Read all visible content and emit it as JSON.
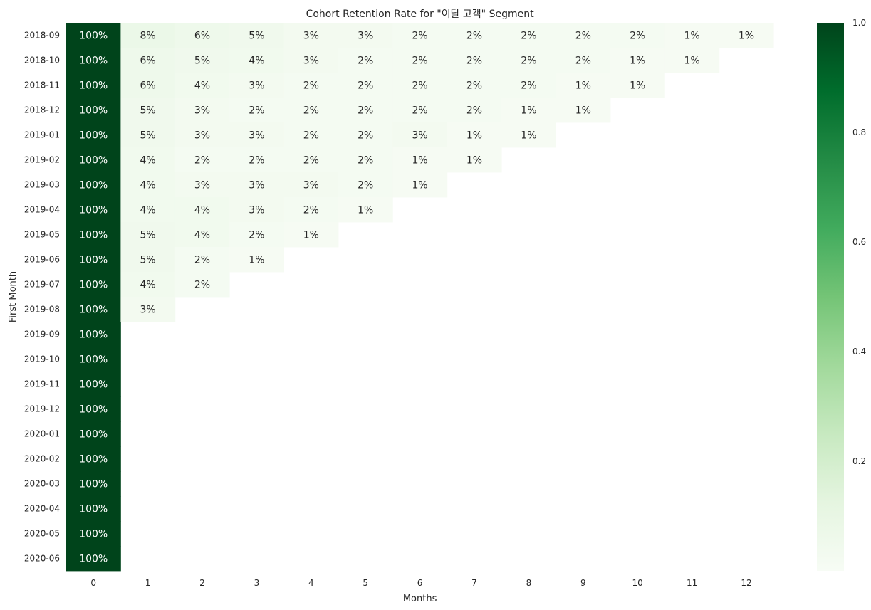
{
  "chart_data": {
    "type": "heatmap",
    "title": "Cohort Retention Rate for \"이탈 고객\" Segment",
    "xlabel": "Months",
    "ylabel": "First Month",
    "x_ticks": [
      "0",
      "1",
      "2",
      "3",
      "4",
      "5",
      "6",
      "7",
      "8",
      "9",
      "10",
      "11",
      "12"
    ],
    "y_ticks": [
      "2018-09",
      "2018-10",
      "2018-11",
      "2018-12",
      "2019-01",
      "2019-02",
      "2019-03",
      "2019-04",
      "2019-05",
      "2019-06",
      "2019-07",
      "2019-08",
      "2019-09",
      "2019-10",
      "2019-11",
      "2019-12",
      "2020-01",
      "2020-02",
      "2020-03",
      "2020-04",
      "2020-05",
      "2020-06"
    ],
    "values": [
      [
        1.0,
        0.08,
        0.06,
        0.05,
        0.03,
        0.03,
        0.02,
        0.02,
        0.02,
        0.02,
        0.02,
        0.01,
        0.01
      ],
      [
        1.0,
        0.06,
        0.05,
        0.04,
        0.03,
        0.02,
        0.02,
        0.02,
        0.02,
        0.02,
        0.01,
        0.01
      ],
      [
        1.0,
        0.06,
        0.04,
        0.03,
        0.02,
        0.02,
        0.02,
        0.02,
        0.02,
        0.01,
        0.01
      ],
      [
        1.0,
        0.05,
        0.03,
        0.02,
        0.02,
        0.02,
        0.02,
        0.02,
        0.01,
        0.01
      ],
      [
        1.0,
        0.05,
        0.03,
        0.03,
        0.02,
        0.02,
        0.03,
        0.01,
        0.01
      ],
      [
        1.0,
        0.04,
        0.02,
        0.02,
        0.02,
        0.02,
        0.01,
        0.01
      ],
      [
        1.0,
        0.04,
        0.03,
        0.03,
        0.03,
        0.02,
        0.01
      ],
      [
        1.0,
        0.04,
        0.04,
        0.03,
        0.02,
        0.01
      ],
      [
        1.0,
        0.05,
        0.04,
        0.02,
        0.01
      ],
      [
        1.0,
        0.05,
        0.02,
        0.01
      ],
      [
        1.0,
        0.04,
        0.02
      ],
      [
        1.0,
        0.03
      ],
      [
        1.0
      ],
      [
        1.0
      ],
      [
        1.0
      ],
      [
        1.0
      ],
      [
        1.0
      ],
      [
        1.0
      ],
      [
        1.0
      ],
      [
        1.0
      ],
      [
        1.0
      ],
      [
        1.0
      ]
    ],
    "value_format": "percent",
    "colormap": "Greens",
    "colorbar": {
      "range": [
        0,
        1
      ],
      "ticks": [
        "0.2",
        "0.4",
        "0.6",
        "0.8",
        "1.0"
      ]
    },
    "colors": {
      "low": "#f7fcf5",
      "high": "#00441b"
    }
  }
}
